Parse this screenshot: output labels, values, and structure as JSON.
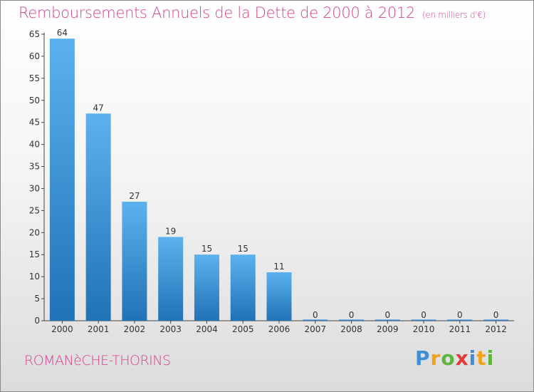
{
  "header": {
    "title": "Remboursements Annuels de la Dette de 2000 à 2012",
    "unit": "(en milliers d'€)"
  },
  "footer": {
    "commune": "ROMANèCHE-THORINS",
    "brand_letters": [
      "P",
      "r",
      "o",
      "x",
      "i",
      "t",
      "i"
    ]
  },
  "chart_data": {
    "type": "bar",
    "title": "Remboursements Annuels de la Dette de 2000 à 2012",
    "subtitle": "(en milliers d'€)",
    "xlabel": "",
    "ylabel": "",
    "categories": [
      "2000",
      "2001",
      "2002",
      "2003",
      "2004",
      "2005",
      "2006",
      "2007",
      "2008",
      "2009",
      "2010",
      "2011",
      "2012"
    ],
    "values": [
      64,
      47,
      27,
      19,
      15,
      15,
      11,
      0,
      0,
      0,
      0,
      0,
      0
    ],
    "data_labels": [
      "64",
      "47",
      "27",
      "19",
      "15",
      "15",
      "11",
      "0",
      "0",
      "0",
      "0",
      "0",
      "0"
    ],
    "ylim": [
      0,
      65
    ],
    "yticks": [
      0,
      5,
      10,
      15,
      20,
      25,
      30,
      35,
      40,
      45,
      50,
      55,
      60,
      65
    ],
    "grid": false,
    "bar_color": "#3a8fd6"
  }
}
